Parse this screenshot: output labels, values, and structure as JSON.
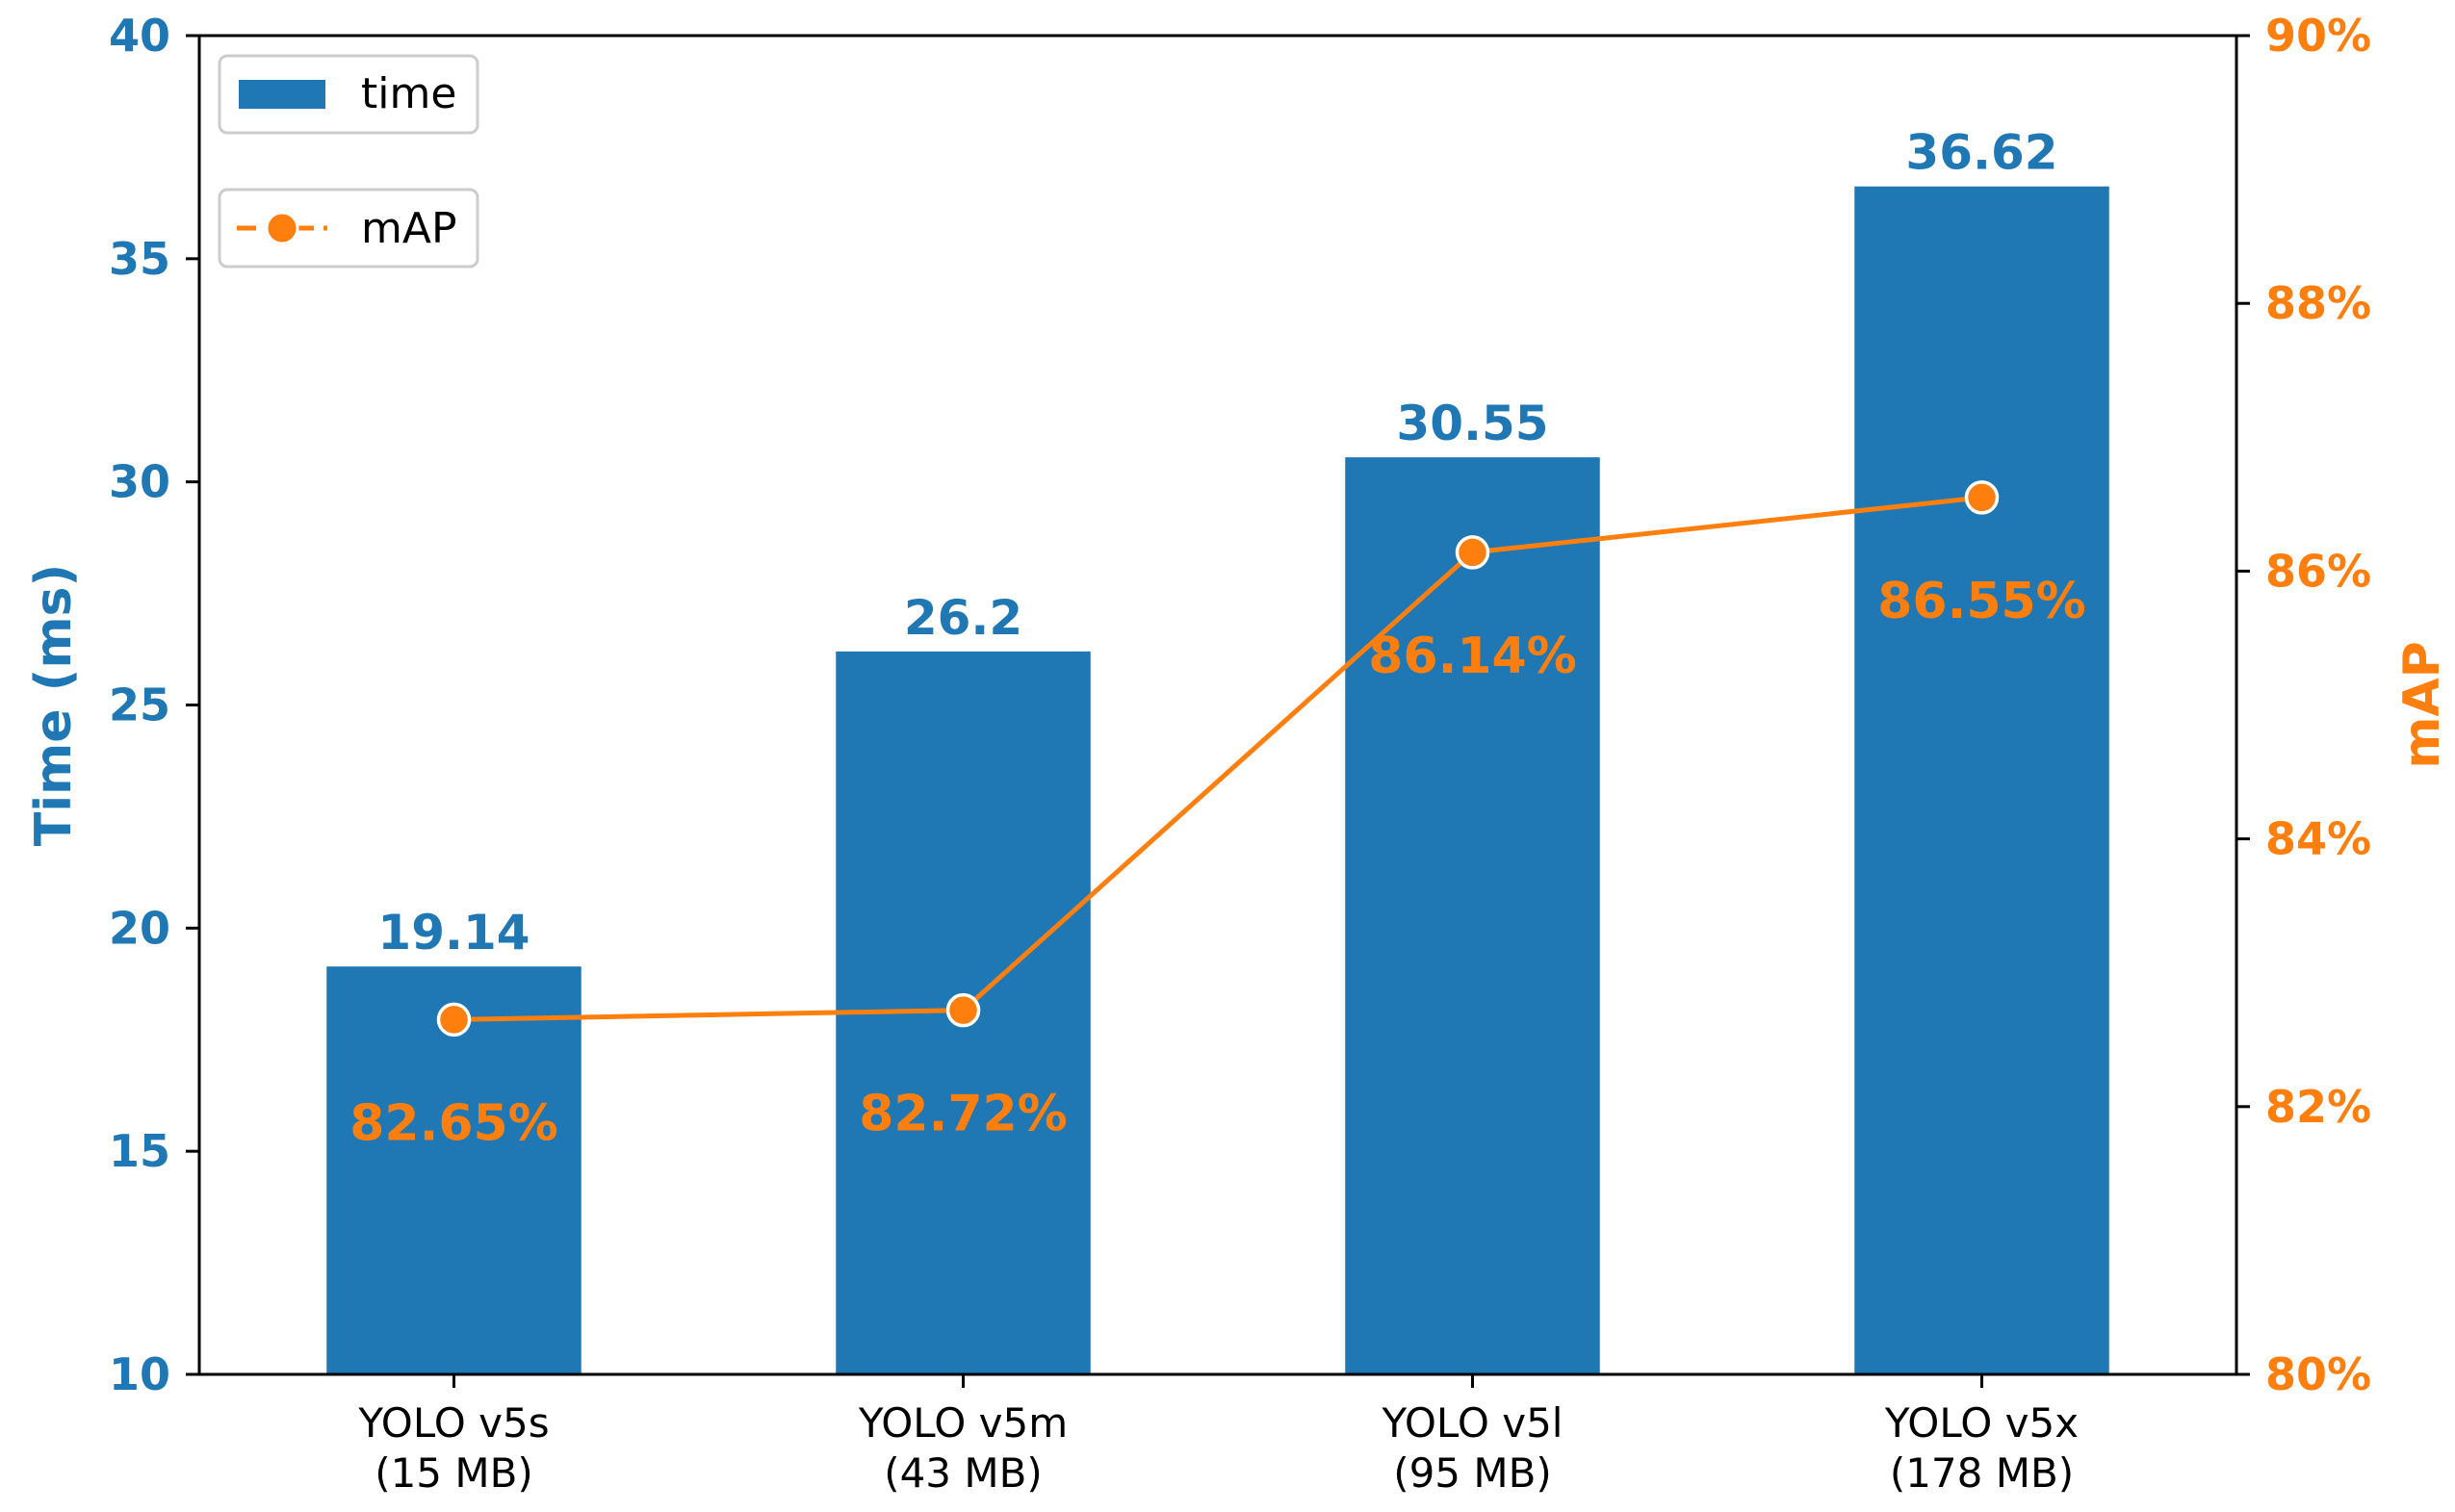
{
  "chart_data": {
    "type": "bar",
    "categories": [
      [
        "YOLO v5s",
        "(15 MB)"
      ],
      [
        "YOLO v5m",
        "(43 MB)"
      ],
      [
        "YOLO v5l",
        "(95 MB)"
      ],
      [
        "YOLO v5x",
        "(178 MB)"
      ]
    ],
    "series": [
      {
        "name": "time",
        "type": "bar",
        "axis": "left",
        "values": [
          19.14,
          26.2,
          30.55,
          36.62
        ],
        "labels": [
          "19.14",
          "26.2",
          "30.55",
          "36.62"
        ]
      },
      {
        "name": "mAP",
        "type": "line",
        "axis": "right",
        "values": [
          82.65,
          82.72,
          86.14,
          86.55
        ],
        "labels": [
          "82.65%",
          "82.72%",
          "86.14%",
          "86.55%"
        ]
      }
    ],
    "ylabel": "Time (ms)",
    "y2label": "mAP",
    "ylim": [
      10,
      40
    ],
    "y2lim": [
      80,
      90
    ],
    "yticks": [
      "10",
      "15",
      "20",
      "25",
      "30",
      "35",
      "40"
    ],
    "y2ticks": [
      "80%",
      "82%",
      "84%",
      "86%",
      "88%",
      "90%"
    ],
    "legend": {
      "placement": "top-left",
      "entries": [
        "time",
        "mAP"
      ]
    },
    "colors": {
      "time": "#1f77b4",
      "mAP": "#ff7f0e",
      "axis": "#000000"
    }
  }
}
